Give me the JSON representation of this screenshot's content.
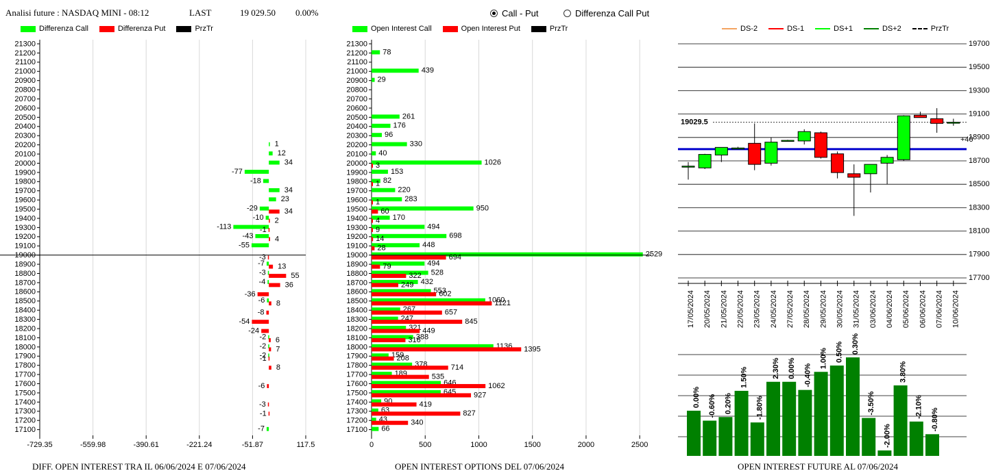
{
  "header": {
    "title": "Analisi future : NASDAQ MINI - 08:12",
    "last_label": "LAST",
    "last_value": "19 029.50",
    "change": "0.00%"
  },
  "mode": {
    "option1": "Call - Put",
    "option2": "Differenza Call Put",
    "selected": "Call - Put"
  },
  "legends": {
    "left": {
      "call": "Differenza Call",
      "put": "Differenza Put",
      "strike": "PrzTr"
    },
    "middle": {
      "call": "Open Interest Call",
      "put": "Open Interest Put",
      "strike": "PrzTr"
    },
    "right": {
      "ds_m2": "DS-2",
      "ds_m1": "DS-1",
      "ds_p1": "DS+1",
      "ds_p2": "DS+2",
      "strike": "PrzTr"
    }
  },
  "captions": {
    "left": "DIFF. OPEN INTEREST TRA IL 06/06/2024 E 07/06/2024",
    "middle": "OPEN INTEREST OPTIONS DEL 07/06/2024",
    "right": "OPEN INTEREST FUTURE AL 07/06/2024"
  },
  "colors": {
    "green": "#00ff00",
    "red": "#ff0000",
    "dark_green": "#008000",
    "blue": "#0000cc",
    "ds_m2": "#f4a460",
    "ds_m1": "#ff0000",
    "ds_p1": "#00ff00",
    "ds_p2": "#008000"
  },
  "chart_data": [
    {
      "type": "bar",
      "orientation": "horizontal",
      "title": "DIFF. OPEN INTEREST TRA IL 06/06/2024 E 07/06/2024",
      "categories": [
        "21300",
        "21200",
        "21100",
        "21000",
        "20900",
        "20800",
        "20700",
        "20600",
        "20500",
        "20400",
        "20300",
        "20200",
        "20100",
        "20000",
        "19900",
        "19800",
        "19700",
        "19600",
        "19500",
        "19400",
        "19300",
        "19200",
        "19100",
        "19000",
        "18900",
        "18800",
        "18700",
        "18600",
        "18500",
        "18400",
        "18300",
        "18200",
        "18100",
        "18000",
        "17900",
        "17800",
        "17700",
        "17600",
        "17500",
        "17400",
        "17300",
        "17200",
        "17100"
      ],
      "xlim": [
        -729.35,
        117.5
      ],
      "xticks": [
        "-729.35",
        "-559.98",
        "-390.61",
        "-221.24",
        "-51.87",
        "117.5"
      ],
      "strike_line": "19000",
      "series": [
        {
          "name": "Differenza Call",
          "points": [
            {
              "cat": "20200",
              "v": 1,
              "label": "1"
            },
            {
              "cat": "20100",
              "v": 12,
              "label": "12"
            },
            {
              "cat": "20000",
              "v": 34,
              "label": "34"
            },
            {
              "cat": "19900",
              "v": -77,
              "label": "-77"
            },
            {
              "cat": "19800",
              "v": -18,
              "label": "-18"
            },
            {
              "cat": "19700",
              "v": 34,
              "label": "34"
            },
            {
              "cat": "19600",
              "v": 23,
              "label": "23"
            },
            {
              "cat": "19500",
              "v": -29,
              "label": "-29"
            },
            {
              "cat": "19400",
              "v": -10,
              "label": "-10"
            },
            {
              "cat": "19300",
              "v": -113,
              "label": "-113"
            },
            {
              "cat": "19200",
              "v": -43,
              "label": "-43"
            },
            {
              "cat": "19100",
              "v": -55,
              "label": "-55"
            },
            {
              "cat": "18900",
              "v": -7,
              "label": "-7"
            },
            {
              "cat": "18800",
              "v": -3,
              "label": "-3"
            },
            {
              "cat": "18700",
              "v": -4,
              "label": "-4"
            },
            {
              "cat": "18500",
              "v": -6,
              "label": "-6"
            },
            {
              "cat": "18100",
              "v": -2,
              "label": "-2"
            },
            {
              "cat": "18000",
              "v": -2,
              "label": "-2"
            },
            {
              "cat": "17900",
              "v": -2,
              "label": "-2"
            },
            {
              "cat": "17100",
              "v": -7,
              "label": "-7"
            }
          ]
        },
        {
          "name": "Differenza Put",
          "points": [
            {
              "cat": "19500",
              "v": 34,
              "label": "34"
            },
            {
              "cat": "19400",
              "v": 2,
              "label": "2"
            },
            {
              "cat": "19300",
              "v": -1,
              "label": "-1"
            },
            {
              "cat": "19200",
              "v": 4,
              "label": "4"
            },
            {
              "cat": "19000",
              "v": -3,
              "label": "-3"
            },
            {
              "cat": "18900",
              "v": 13,
              "label": "13"
            },
            {
              "cat": "18800",
              "v": 55,
              "label": "55"
            },
            {
              "cat": "18700",
              "v": 36,
              "label": "36"
            },
            {
              "cat": "18600",
              "v": -36,
              "label": "-36"
            },
            {
              "cat": "18500",
              "v": 8,
              "label": "8"
            },
            {
              "cat": "18400",
              "v": -8,
              "label": "-8"
            },
            {
              "cat": "18300",
              "v": -54,
              "label": "-54"
            },
            {
              "cat": "18200",
              "v": -24,
              "label": "-24"
            },
            {
              "cat": "18100",
              "v": 6,
              "label": "6"
            },
            {
              "cat": "18000",
              "v": 7,
              "label": "7"
            },
            {
              "cat": "17900",
              "v": -1,
              "label": "-1"
            },
            {
              "cat": "17800",
              "v": 8,
              "label": "8"
            },
            {
              "cat": "17600",
              "v": -6,
              "label": "-6"
            },
            {
              "cat": "17400",
              "v": -3,
              "label": "-3"
            },
            {
              "cat": "17300",
              "v": -1,
              "label": "-1"
            }
          ]
        }
      ]
    },
    {
      "type": "bar",
      "orientation": "horizontal",
      "title": "OPEN INTEREST OPTIONS DEL 07/06/2024",
      "categories": [
        "21300",
        "21200",
        "21100",
        "21000",
        "20900",
        "20800",
        "20700",
        "20600",
        "20500",
        "20400",
        "20300",
        "20200",
        "20100",
        "20000",
        "19900",
        "19800",
        "19700",
        "19600",
        "19500",
        "19400",
        "19300",
        "19200",
        "19100",
        "19000",
        "18900",
        "18800",
        "18700",
        "18600",
        "18500",
        "18400",
        "18300",
        "18200",
        "18100",
        "18000",
        "17900",
        "17800",
        "17700",
        "17600",
        "17500",
        "17400",
        "17300",
        "17200",
        "17100"
      ],
      "xlim": [
        0,
        2550
      ],
      "xticks": [
        "0",
        "500",
        "1000",
        "1500",
        "2000",
        "2500"
      ],
      "strike_line": "19000",
      "series": [
        {
          "name": "Open Interest Call",
          "points": [
            {
              "cat": "21200",
              "v": 78,
              "label": "78"
            },
            {
              "cat": "21000",
              "v": 439,
              "label": "439"
            },
            {
              "cat": "20900",
              "v": 29,
              "label": "29"
            },
            {
              "cat": "20500",
              "v": 261,
              "label": "261"
            },
            {
              "cat": "20400",
              "v": 176,
              "label": "176"
            },
            {
              "cat": "20300",
              "v": 96,
              "label": "96"
            },
            {
              "cat": "20200",
              "v": 330,
              "label": "330"
            },
            {
              "cat": "20100",
              "v": 40,
              "label": "40"
            },
            {
              "cat": "20000",
              "v": 1026,
              "label": "1026"
            },
            {
              "cat": "19900",
              "v": 153,
              "label": "153"
            },
            {
              "cat": "19800",
              "v": 82,
              "label": "82"
            },
            {
              "cat": "19700",
              "v": 220,
              "label": "220"
            },
            {
              "cat": "19600",
              "v": 283,
              "label": "283"
            },
            {
              "cat": "19500",
              "v": 950,
              "label": "950"
            },
            {
              "cat": "19400",
              "v": 170,
              "label": "170"
            },
            {
              "cat": "19300",
              "v": 494,
              "label": "494"
            },
            {
              "cat": "19200",
              "v": 698,
              "label": "698"
            },
            {
              "cat": "19100",
              "v": 448,
              "label": "448"
            },
            {
              "cat": "19000",
              "v": 2529,
              "label": "2529"
            },
            {
              "cat": "18900",
              "v": 494,
              "label": "494"
            },
            {
              "cat": "18800",
              "v": 528,
              "label": "528"
            },
            {
              "cat": "18700",
              "v": 432,
              "label": "432"
            },
            {
              "cat": "18600",
              "v": 553,
              "label": "553"
            },
            {
              "cat": "18500",
              "v": 1060,
              "label": "1060"
            },
            {
              "cat": "18400",
              "v": 267,
              "label": "267"
            },
            {
              "cat": "18300",
              "v": 247,
              "label": "247"
            },
            {
              "cat": "18200",
              "v": 321,
              "label": "321"
            },
            {
              "cat": "18100",
              "v": 388,
              "label": "388"
            },
            {
              "cat": "18000",
              "v": 1136,
              "label": "1136"
            },
            {
              "cat": "17900",
              "v": 159,
              "label": "159"
            },
            {
              "cat": "17800",
              "v": 378,
              "label": "378"
            },
            {
              "cat": "17700",
              "v": 189,
              "label": "189"
            },
            {
              "cat": "17600",
              "v": 646,
              "label": "646"
            },
            {
              "cat": "17500",
              "v": 645,
              "label": "645"
            },
            {
              "cat": "17400",
              "v": 90,
              "label": "90"
            },
            {
              "cat": "17300",
              "v": 63,
              "label": "63"
            },
            {
              "cat": "17200",
              "v": 43,
              "label": "43"
            },
            {
              "cat": "17100",
              "v": 66,
              "label": "66"
            }
          ]
        },
        {
          "name": "Open Interest Put",
          "points": [
            {
              "cat": "20000",
              "v": 3,
              "label": "3"
            },
            {
              "cat": "19800",
              "v": 1,
              "label": "1"
            },
            {
              "cat": "19600",
              "v": 1,
              "label": "1"
            },
            {
              "cat": "19500",
              "v": 60,
              "label": "60"
            },
            {
              "cat": "19400",
              "v": 4,
              "label": "4"
            },
            {
              "cat": "19300",
              "v": 9,
              "label": "9"
            },
            {
              "cat": "19200",
              "v": 14,
              "label": "14"
            },
            {
              "cat": "19100",
              "v": 28,
              "label": "28"
            },
            {
              "cat": "19000",
              "v": 694,
              "label": "694"
            },
            {
              "cat": "18900",
              "v": 79,
              "label": "79"
            },
            {
              "cat": "18800",
              "v": 322,
              "label": "322"
            },
            {
              "cat": "18700",
              "v": 249,
              "label": "249"
            },
            {
              "cat": "18600",
              "v": 602,
              "label": "602"
            },
            {
              "cat": "18500",
              "v": 1121,
              "label": "1121"
            },
            {
              "cat": "18400",
              "v": 657,
              "label": "657"
            },
            {
              "cat": "18300",
              "v": 845,
              "label": "845"
            },
            {
              "cat": "18200",
              "v": 449,
              "label": "449"
            },
            {
              "cat": "18100",
              "v": 316,
              "label": "316"
            },
            {
              "cat": "18000",
              "v": 1395,
              "label": "1395"
            },
            {
              "cat": "17900",
              "v": 208,
              "label": "208"
            },
            {
              "cat": "17800",
              "v": 714,
              "label": "714"
            },
            {
              "cat": "17700",
              "v": 535,
              "label": "535"
            },
            {
              "cat": "17600",
              "v": 1062,
              "label": "1062"
            },
            {
              "cat": "17500",
              "v": 927,
              "label": "927"
            },
            {
              "cat": "17400",
              "v": 419,
              "label": "419"
            },
            {
              "cat": "17300",
              "v": 827,
              "label": "827"
            },
            {
              "cat": "17200",
              "v": 340,
              "label": "340"
            }
          ]
        }
      ]
    },
    {
      "type": "candlestick",
      "ylim": [
        17700,
        19760
      ],
      "yticks": [
        "19700",
        "19500",
        "19300",
        "19100",
        "18900",
        "18700",
        "18500",
        "18300",
        "18100",
        "17900",
        "17700"
      ],
      "dates": [
        "17/05/2024",
        "20/05/2024",
        "21/05/2024",
        "22/05/2024",
        "23/05/2024",
        "24/05/2024",
        "27/05/2024",
        "28/05/2024",
        "29/05/2024",
        "30/05/2024",
        "31/05/2024",
        "03/06/2024",
        "04/06/2024",
        "05/06/2024",
        "06/06/2024",
        "07/06/2024",
        "10/06/2024"
      ],
      "candles": [
        {
          "o": 18655,
          "h": 18690,
          "l": 18540,
          "c": 18655
        },
        {
          "o": 18640,
          "h": 18760,
          "l": 18630,
          "c": 18755
        },
        {
          "o": 18750,
          "h": 18810,
          "l": 18690,
          "c": 18815
        },
        {
          "o": 18805,
          "h": 18820,
          "l": 18800,
          "c": 18810
        },
        {
          "o": 18850,
          "h": 19020,
          "l": 18620,
          "c": 18670
        },
        {
          "o": 18680,
          "h": 18900,
          "l": 18660,
          "c": 18860
        },
        {
          "o": 18870,
          "h": 18880,
          "l": 18865,
          "c": 18875
        },
        {
          "o": 18870,
          "h": 18970,
          "l": 18840,
          "c": 18950
        },
        {
          "o": 18940,
          "h": 18950,
          "l": 18720,
          "c": 18730
        },
        {
          "o": 18760,
          "h": 18780,
          "l": 18550,
          "c": 18600
        },
        {
          "o": 18590,
          "h": 18670,
          "l": 18230,
          "c": 18560
        },
        {
          "o": 18590,
          "h": 18670,
          "l": 18430,
          "c": 18670
        },
        {
          "o": 18680,
          "h": 18750,
          "l": 18500,
          "c": 18730
        },
        {
          "o": 18710,
          "h": 19090,
          "l": 18700,
          "c": 19085
        },
        {
          "o": 19090,
          "h": 19120,
          "l": 19070,
          "c": 19070
        },
        {
          "o": 19060,
          "h": 19150,
          "l": 18940,
          "c": 19020
        },
        {
          "o": 19030,
          "h": 19060,
          "l": 19000,
          "c": 19030
        }
      ],
      "reference_line": 18800,
      "strike_label": "19029.5",
      "strike_value": 19029.5,
      "side_label": "+40"
    },
    {
      "type": "bar",
      "title": "OPEN INTEREST FUTURE AL 07/06/2024",
      "dates": [
        "17/05/2024",
        "20/05/2024",
        "21/05/2024",
        "22/05/2024",
        "23/05/2024",
        "24/05/2024",
        "27/05/2024",
        "28/05/2024",
        "29/05/2024",
        "30/05/2024",
        "31/05/2024",
        "03/06/2024",
        "04/06/2024",
        "05/06/2024",
        "06/06/2024",
        "07/06/2024"
      ],
      "values": [
        0.5,
        0.39,
        0.43,
        0.72,
        0.37,
        0.82,
        0.82,
        0.73,
        0.93,
        1.0,
        1.09,
        0.42,
        0.06,
        0.78,
        0.38,
        0.24
      ],
      "labels": [
        "0.00%",
        "-0.60%",
        "0.20%",
        "1.50%",
        "-1.80%",
        "2.30%",
        "0.00%",
        "-0.40%",
        "1.00%",
        "0.50%",
        "0.30%",
        "-3.50%",
        "-2.00%",
        "3.80%",
        "-2.10%",
        "-0.80%"
      ]
    }
  ]
}
